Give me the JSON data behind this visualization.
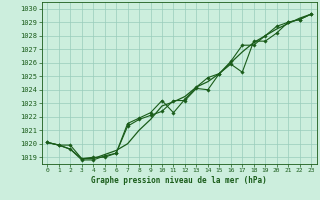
{
  "title": "Graphe pression niveau de la mer (hPa)",
  "xlim": [
    -0.5,
    23.5
  ],
  "ylim": [
    1018.5,
    1030.5
  ],
  "yticks": [
    1019,
    1020,
    1021,
    1022,
    1023,
    1024,
    1025,
    1026,
    1027,
    1028,
    1029,
    1030
  ],
  "xticks": [
    0,
    1,
    2,
    3,
    4,
    5,
    6,
    7,
    8,
    9,
    10,
    11,
    12,
    13,
    14,
    15,
    16,
    17,
    18,
    19,
    20,
    21,
    22,
    23
  ],
  "bg_color": "#cceedd",
  "grid_color": "#99ccbb",
  "line_color": "#1a5c1a",
  "line1_x": [
    0,
    1,
    2,
    3,
    4,
    5,
    6,
    7,
    8,
    9,
    10,
    11,
    12,
    13,
    14,
    15,
    16,
    17,
    18,
    19,
    20,
    21,
    22,
    23
  ],
  "line1_y": [
    1020.1,
    1019.9,
    1019.6,
    1018.9,
    1018.9,
    1019.2,
    1019.5,
    1020.0,
    1021.0,
    1021.8,
    1022.8,
    1023.1,
    1023.5,
    1024.2,
    1024.6,
    1025.2,
    1026.0,
    1026.8,
    1027.5,
    1028.0,
    1028.5,
    1028.9,
    1029.3,
    1029.6
  ],
  "line2_x": [
    0,
    1,
    2,
    3,
    4,
    5,
    6,
    7,
    8,
    9,
    10,
    11,
    12,
    13,
    14,
    15,
    16,
    17,
    18,
    19,
    20,
    21,
    22,
    23
  ],
  "line2_y": [
    1020.1,
    1019.9,
    1019.6,
    1018.8,
    1018.8,
    1019.1,
    1019.3,
    1021.3,
    1021.8,
    1022.1,
    1022.4,
    1023.2,
    1023.2,
    1024.1,
    1024.0,
    1025.2,
    1025.9,
    1025.3,
    1027.6,
    1027.6,
    1028.2,
    1029.0,
    1029.2,
    1029.6
  ],
  "line3_x": [
    0,
    1,
    2,
    3,
    4,
    5,
    6,
    7,
    8,
    9,
    10,
    11,
    12,
    13,
    14,
    15,
    16,
    17,
    18,
    19,
    20,
    21,
    22,
    23
  ],
  "line3_y": [
    1020.1,
    1019.9,
    1019.9,
    1018.9,
    1019.0,
    1019.0,
    1019.3,
    1021.5,
    1021.9,
    1022.3,
    1023.2,
    1022.3,
    1023.3,
    1024.2,
    1024.9,
    1025.2,
    1026.1,
    1027.3,
    1027.3,
    1028.0,
    1028.7,
    1029.0,
    1029.2,
    1029.6
  ]
}
